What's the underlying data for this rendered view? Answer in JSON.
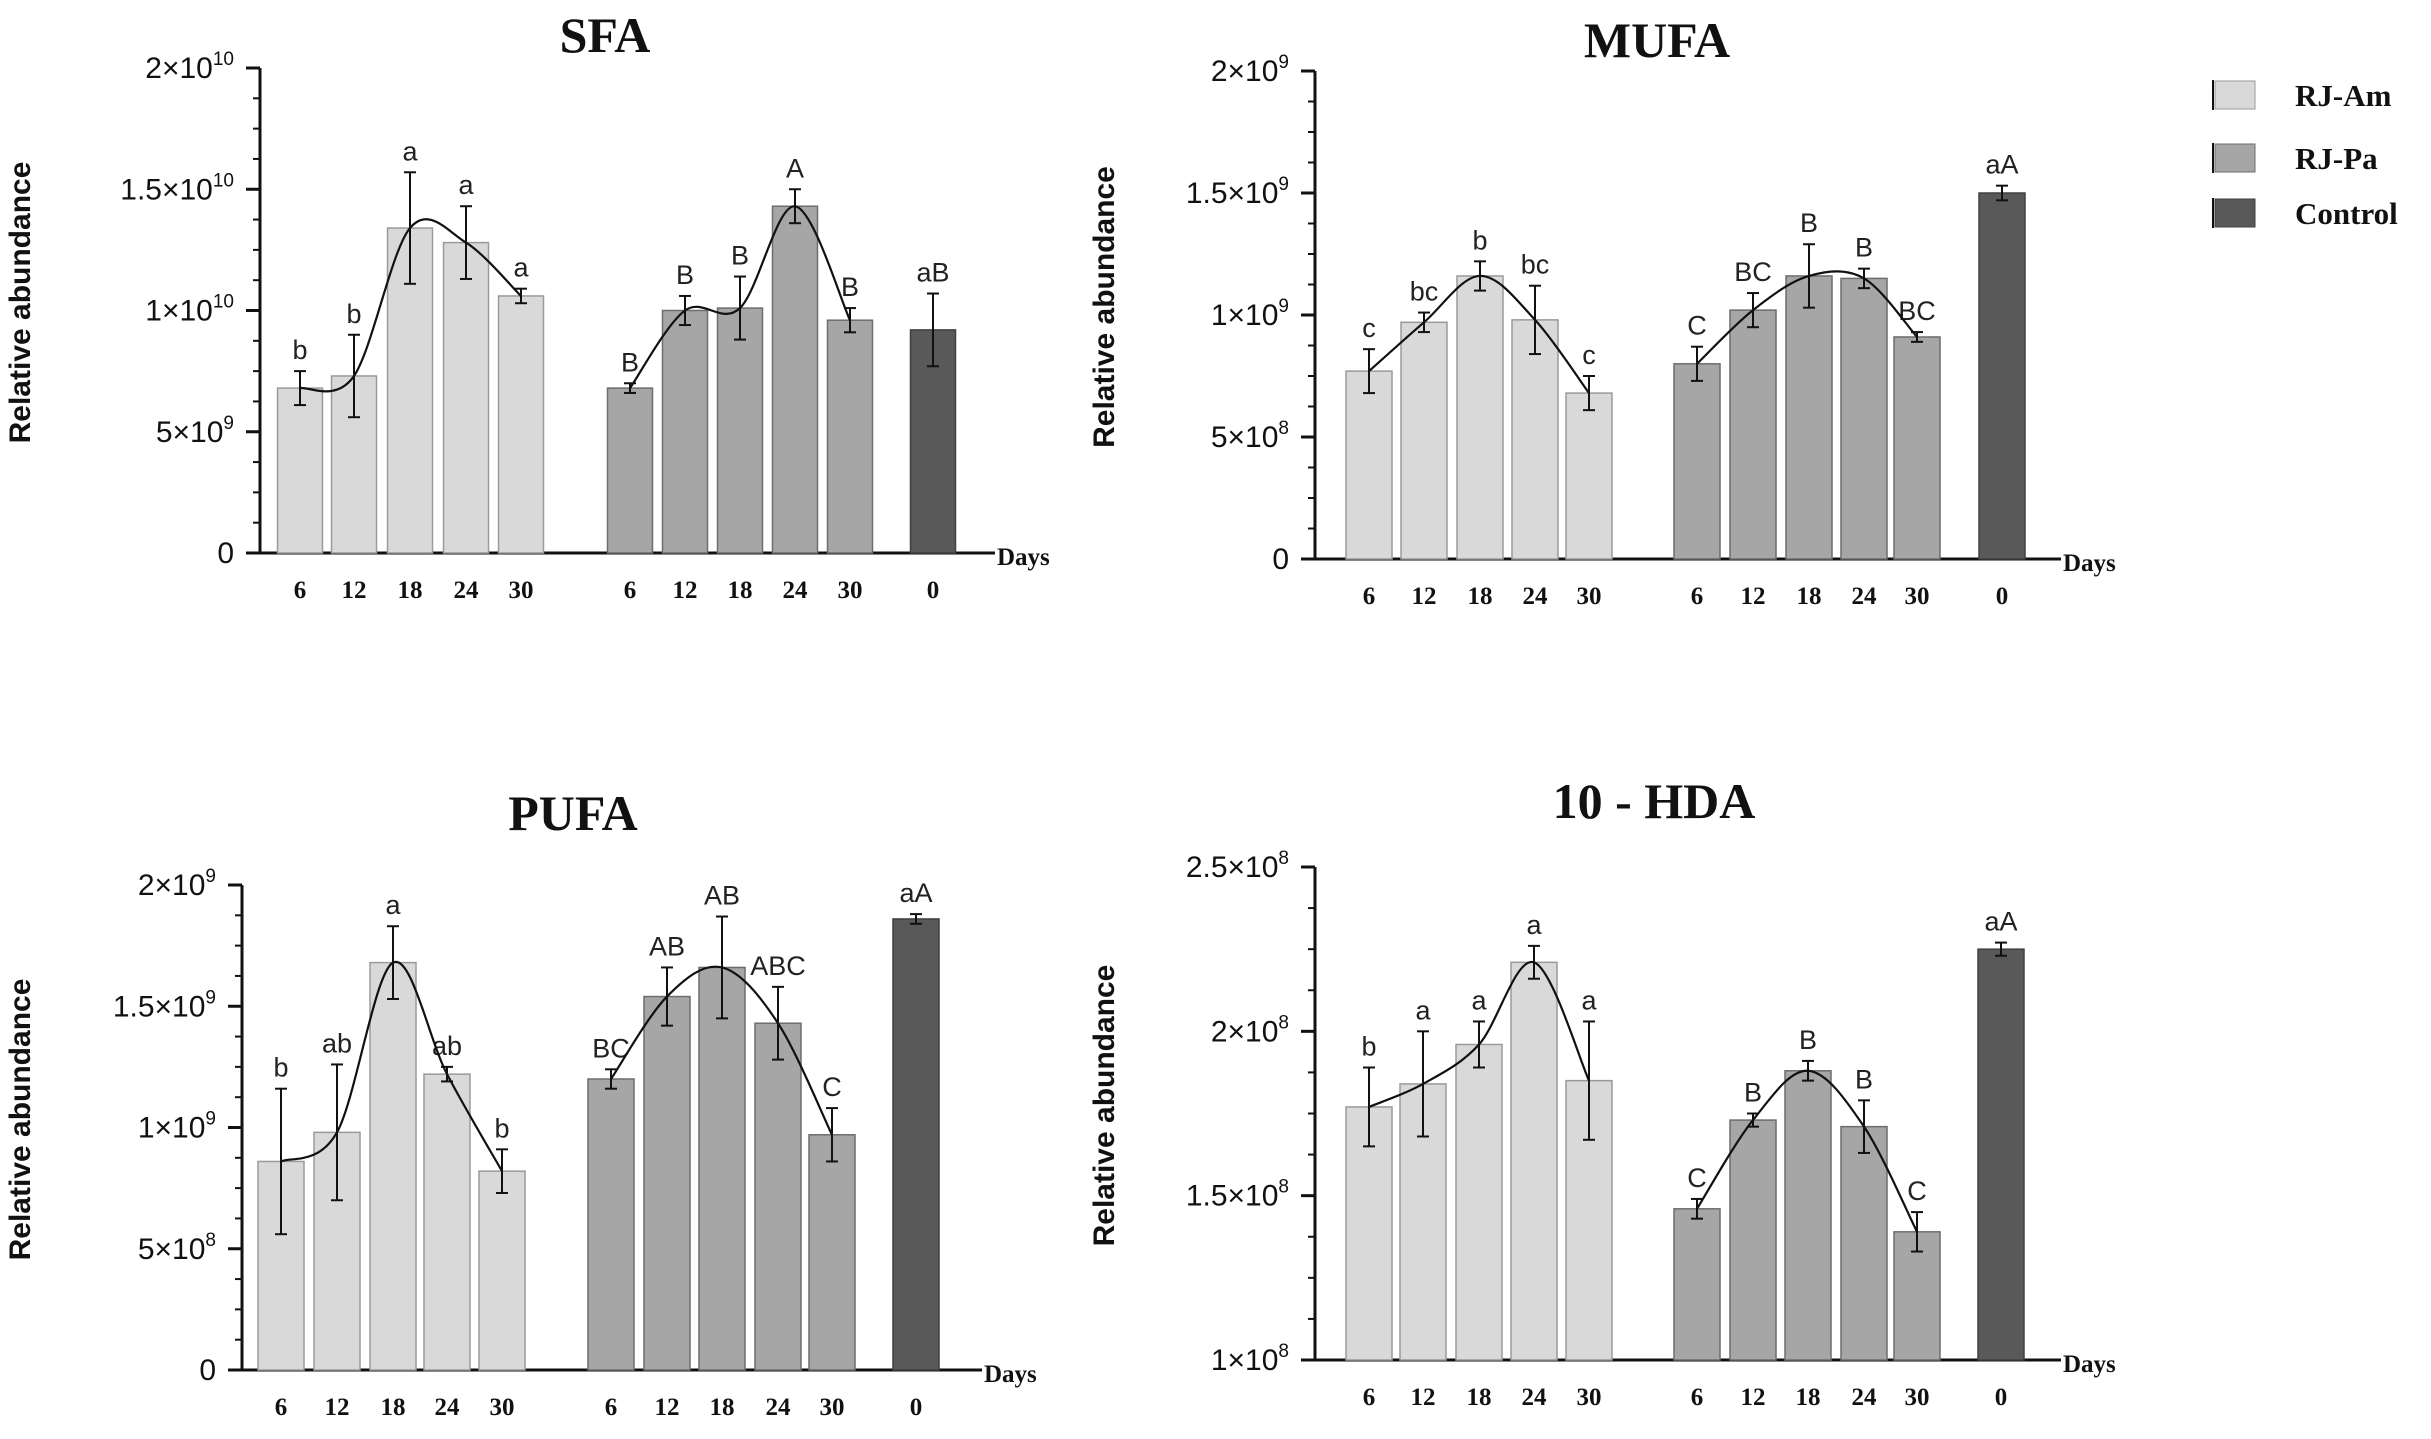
{
  "legend": {
    "items": [
      {
        "label": "RJ-Am",
        "color": "#d9d9d9"
      },
      {
        "label": "RJ-Pa",
        "color": "#a6a6a6"
      },
      {
        "label": "Control",
        "color": "#595959"
      }
    ]
  },
  "chart_data": [
    {
      "type": "bar",
      "title": "SFA",
      "ylabel": "Relative abundance",
      "xlabel": "Days",
      "ylim": [
        0,
        20000000000
      ],
      "yticks": [
        {
          "value": 0,
          "mant": "0",
          "exp": ""
        },
        {
          "value": 5000000000,
          "mant": "5×10",
          "exp": "9"
        },
        {
          "value": 10000000000,
          "mant": "1×10",
          "exp": "10"
        },
        {
          "value": 15000000000,
          "mant": "1.5×10",
          "exp": "10"
        },
        {
          "value": 20000000000,
          "mant": "2×10",
          "exp": "10"
        }
      ],
      "groups": [
        {
          "name": "RJ-Am",
          "categories": [
            "6",
            "12",
            "18",
            "24",
            "30"
          ],
          "values": [
            6800000000.0,
            7300000000.0,
            13400000000.0,
            12800000000.0,
            10600000000.0
          ],
          "errors": [
            700000000.0,
            1700000000.0,
            2300000000.0,
            1500000000.0,
            300000000.0
          ],
          "labels": [
            "b",
            "b",
            "a",
            "a",
            "a"
          ]
        },
        {
          "name": "RJ-Pa",
          "categories": [
            "6",
            "12",
            "18",
            "24",
            "30"
          ],
          "values": [
            6800000000.0,
            10000000000.0,
            10100000000.0,
            14300000000.0,
            9600000000.0
          ],
          "errors": [
            200000000.0,
            600000000.0,
            1300000000.0,
            700000000.0,
            500000000.0
          ],
          "labels": [
            "B",
            "B",
            "B",
            "A",
            "B"
          ]
        },
        {
          "name": "Control",
          "categories": [
            "0"
          ],
          "values": [
            9200000000.0
          ],
          "errors": [
            1500000000.0
          ],
          "labels": [
            "aB"
          ]
        }
      ]
    },
    {
      "type": "bar",
      "title": "MUFA",
      "ylabel": "Relative abundance",
      "xlabel": "Days",
      "ylim": [
        0,
        2000000000
      ],
      "yticks": [
        {
          "value": 0,
          "mant": "0",
          "exp": ""
        },
        {
          "value": 500000000,
          "mant": "5×10",
          "exp": "8"
        },
        {
          "value": 1000000000,
          "mant": "1×10",
          "exp": "9"
        },
        {
          "value": 1500000000,
          "mant": "1.5×10",
          "exp": "9"
        },
        {
          "value": 2000000000,
          "mant": "2×10",
          "exp": "9"
        }
      ],
      "groups": [
        {
          "name": "RJ-Am",
          "categories": [
            "6",
            "12",
            "18",
            "24",
            "30"
          ],
          "values": [
            770000000.0,
            970000000.0,
            1160000000.0,
            980000000.0,
            680000000.0
          ],
          "errors": [
            90000000.0,
            40000000.0,
            60000000.0,
            140000000.0,
            70000000.0
          ],
          "labels": [
            "c",
            "bc",
            "b",
            "bc",
            "c"
          ]
        },
        {
          "name": "RJ-Pa",
          "categories": [
            "6",
            "12",
            "18",
            "24",
            "30"
          ],
          "values": [
            800000000.0,
            1020000000.0,
            1160000000.0,
            1150000000.0,
            910000000.0
          ],
          "errors": [
            70000000.0,
            70000000.0,
            130000000.0,
            40000000.0,
            20000000.0
          ],
          "labels": [
            "C",
            "BC",
            "B",
            "B",
            "BC"
          ]
        },
        {
          "name": "Control",
          "categories": [
            "0"
          ],
          "values": [
            1500000000.0
          ],
          "errors": [
            30000000.0
          ],
          "labels": [
            "aA"
          ]
        }
      ]
    },
    {
      "type": "bar",
      "title": "PUFA",
      "ylabel": "Relative abundance",
      "xlabel": "Days",
      "ylim": [
        0,
        2000000000
      ],
      "yticks": [
        {
          "value": 0,
          "mant": "0",
          "exp": ""
        },
        {
          "value": 500000000,
          "mant": "5×10",
          "exp": "8"
        },
        {
          "value": 1000000000,
          "mant": "1×10",
          "exp": "9"
        },
        {
          "value": 1500000000,
          "mant": "1.5×10",
          "exp": "9"
        },
        {
          "value": 2000000000,
          "mant": "2×10",
          "exp": "9"
        }
      ],
      "groups": [
        {
          "name": "RJ-Am",
          "categories": [
            "6",
            "12",
            "18",
            "24",
            "30"
          ],
          "values": [
            860000000.0,
            980000000.0,
            1680000000.0,
            1220000000.0,
            820000000.0
          ],
          "errors": [
            300000000.0,
            280000000.0,
            150000000.0,
            30000000.0,
            90000000.0
          ],
          "labels": [
            "b",
            "ab",
            "a",
            "ab",
            "b"
          ]
        },
        {
          "name": "RJ-Pa",
          "categories": [
            "6",
            "12",
            "18",
            "24",
            "30"
          ],
          "values": [
            1200000000.0,
            1540000000.0,
            1660000000.0,
            1430000000.0,
            970000000.0
          ],
          "errors": [
            40000000.0,
            120000000.0,
            210000000.0,
            150000000.0,
            110000000.0
          ],
          "labels": [
            "BC",
            "AB",
            "AB",
            "ABC",
            "C"
          ]
        },
        {
          "name": "Control",
          "categories": [
            "0"
          ],
          "values": [
            1860000000.0
          ],
          "errors": [
            20000000.0
          ],
          "labels": [
            "aA"
          ]
        }
      ]
    },
    {
      "type": "bar",
      "title": "10 - HDA",
      "ylabel": "Relative abundance",
      "xlabel": "Days",
      "ylim": [
        100000000,
        250000000
      ],
      "yticks": [
        {
          "value": 100000000,
          "mant": "1×10",
          "exp": "8"
        },
        {
          "value": 150000000,
          "mant": "1.5×10",
          "exp": "8"
        },
        {
          "value": 200000000,
          "mant": "2×10",
          "exp": "8"
        },
        {
          "value": 250000000,
          "mant": "2.5×10",
          "exp": "8"
        }
      ],
      "groups": [
        {
          "name": "RJ-Am",
          "categories": [
            "6",
            "12",
            "18",
            "24",
            "30"
          ],
          "values": [
            177000000.0,
            184000000.0,
            196000000.0,
            221000000.0,
            185000000.0
          ],
          "errors": [
            12000000.0,
            16000000.0,
            7000000.0,
            5000000.0,
            18000000.0
          ],
          "labels": [
            "b",
            "a",
            "a",
            "a",
            "a"
          ]
        },
        {
          "name": "RJ-Pa",
          "categories": [
            "6",
            "12",
            "18",
            "24",
            "30"
          ],
          "values": [
            146000000.0,
            173000000.0,
            188000000.0,
            171000000.0,
            139000000.0
          ],
          "errors": [
            3000000.0,
            2000000.0,
            3000000.0,
            8000000.0,
            6000000.0
          ],
          "labels": [
            "C",
            "B",
            "B",
            "B",
            "C"
          ]
        },
        {
          "name": "Control",
          "categories": [
            "0"
          ],
          "values": [
            225000000.0
          ],
          "errors": [
            2000000.0
          ],
          "labels": [
            "aA"
          ]
        }
      ]
    }
  ]
}
